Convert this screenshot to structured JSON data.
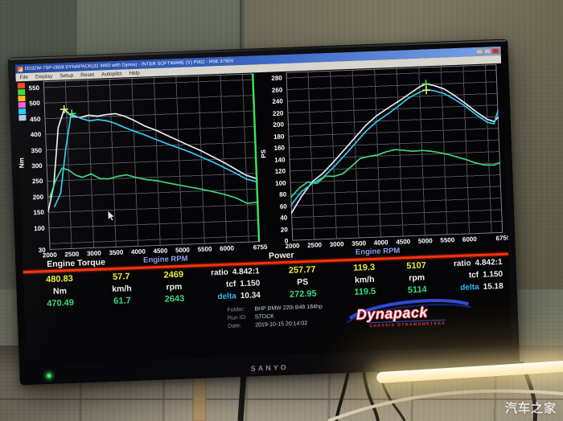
{
  "scene": {
    "watermark": "汽车之家",
    "tv_brand": "SANYO"
  },
  "window": {
    "title": "D032W-7SP-0608 DYNAPACK(32 4WD with Dynos) - INTER SOFTWARE (V) P002 - R5E 3750V",
    "menu": [
      "File",
      "Display",
      "Setup",
      "Reset",
      "Autopilot",
      "Help"
    ]
  },
  "legend_colors": [
    "#ff4013",
    "#2fe22f",
    "#ffb514",
    "#ff57e0",
    "#19cdf2",
    "#a9cdeb"
  ],
  "chart_data": [
    {
      "type": "line",
      "title": "Engine Torque",
      "xlabel": "Engine RPM",
      "ylabel": "Nm",
      "xlim": [
        2000,
        6755
      ],
      "ylim": [
        30,
        570
      ],
      "xticks": [
        2000,
        2500,
        3000,
        3500,
        4000,
        4500,
        5000,
        5500,
        6000,
        6755
      ],
      "xgrid": [
        2000,
        2500,
        3000,
        3500,
        4000,
        4500,
        5000,
        5500,
        6000,
        6500,
        6755
      ],
      "yticks": [
        550,
        500,
        450,
        400,
        350,
        300,
        250,
        200,
        150,
        100,
        30
      ],
      "ygrid": [
        550,
        500,
        450,
        400,
        350,
        300,
        250,
        200,
        150,
        100,
        50
      ],
      "grid": true,
      "series": [
        {
          "name": "run-1-torque",
          "color": "#e9e9f5",
          "x": [
            2000,
            2150,
            2300,
            2450,
            2600,
            2800,
            3000,
            3200,
            3400,
            3600,
            3800,
            4000,
            4250,
            4500,
            4750,
            5000,
            5250,
            5500,
            5750,
            6000,
            6250,
            6500,
            6755
          ],
          "values": [
            152,
            235,
            420,
            478,
            456,
            450,
            456,
            452,
            456,
            458,
            449,
            435,
            415,
            400,
            382,
            364,
            346,
            329,
            309,
            289,
            267,
            245,
            232
          ]
        },
        {
          "name": "run-2-torque",
          "color": "#35c8f0",
          "x": [
            2150,
            2300,
            2450,
            2600,
            2800,
            3000,
            3200,
            3400,
            3600,
            3800,
            4000,
            4250,
            4500,
            4750,
            5000,
            5250,
            5500,
            5750,
            6000,
            6250,
            6500,
            6755
          ],
          "values": [
            168,
            210,
            350,
            462,
            448,
            438,
            441,
            436,
            426,
            412,
            400,
            386,
            370,
            355,
            341,
            326,
            309,
            292,
            273,
            254,
            233,
            222
          ]
        },
        {
          "name": "reference-trace",
          "color": "#3ed47e",
          "x": [
            2050,
            2200,
            2350,
            2500,
            2650,
            2800,
            3000,
            3200,
            3400,
            3600,
            3800,
            4000,
            4250,
            4500,
            4750,
            5000,
            5250,
            5500,
            5750,
            6000,
            6250,
            6500,
            6755
          ],
          "values": [
            198,
            252,
            290,
            283,
            266,
            258,
            268,
            252,
            250,
            257,
            261,
            252,
            243,
            238,
            229,
            221,
            213,
            205,
            196,
            186,
            174,
            155,
            158
          ]
        }
      ],
      "markers": [
        {
          "x": 2450,
          "y": 478,
          "color": "#d8ef5a"
        },
        {
          "x": 2620,
          "y": 463,
          "color": "#49e06b"
        }
      ],
      "cursor_x": 6755,
      "pointer": {
        "x": 3350,
        "y": 148
      }
    },
    {
      "type": "line",
      "title": "Power",
      "xlabel": "Engine RPM",
      "ylabel": "PS",
      "xlim": [
        2000,
        6755
      ],
      "ylim": [
        0,
        290
      ],
      "xticks": [
        2000,
        2500,
        3000,
        3500,
        4000,
        4500,
        5000,
        5500,
        6000,
        6755
      ],
      "xgrid": [
        2000,
        2500,
        3000,
        3500,
        4000,
        4500,
        5000,
        5500,
        6000,
        6500,
        6755
      ],
      "yticks": [
        280,
        260,
        240,
        220,
        200,
        180,
        160,
        140,
        120,
        100,
        80,
        60,
        40,
        20,
        0
      ],
      "ygrid": [
        280,
        260,
        240,
        220,
        200,
        180,
        160,
        140,
        120,
        100,
        80,
        60,
        40,
        20
      ],
      "grid": true,
      "series": [
        {
          "name": "run-1-power",
          "color": "#e9e9f5",
          "x": [
            2000,
            2250,
            2500,
            2750,
            3000,
            3250,
            3500,
            3750,
            4000,
            4250,
            4500,
            4750,
            5000,
            5150,
            5350,
            5550,
            5750,
            6000,
            6250,
            6500,
            6650,
            6755
          ],
          "values": [
            47,
            76,
            100,
            114,
            133,
            153,
            173,
            193,
            209,
            221,
            232,
            244,
            256,
            261,
            257,
            251,
            241,
            226,
            210,
            196,
            192,
            199
          ]
        },
        {
          "name": "run-2-power",
          "color": "#35c8f0",
          "x": [
            2000,
            2250,
            2500,
            2750,
            3000,
            3250,
            3500,
            3750,
            4000,
            4250,
            4500,
            4750,
            5000,
            5150,
            5350,
            5550,
            5750,
            6000,
            6250,
            6500,
            6650,
            6755
          ],
          "values": [
            61,
            84,
            97,
            107,
            124,
            143,
            163,
            183,
            199,
            211,
            224,
            238,
            247,
            251,
            248,
            243,
            234,
            221,
            205,
            191,
            188,
            212
          ]
        },
        {
          "name": "reference-trace",
          "color": "#3ed47e",
          "x": [
            2000,
            2200,
            2400,
            2600,
            2800,
            3000,
            3200,
            3400,
            3600,
            3800,
            4000,
            4200,
            4400,
            4600,
            4800,
            5000,
            5200,
            5400,
            5600,
            5800,
            6000,
            6200,
            6400,
            6600,
            6755
          ],
          "values": [
            74,
            90,
            100,
            97,
            109,
            108,
            112,
            124,
            137,
            140,
            142,
            147,
            150,
            148,
            146,
            147,
            145,
            142,
            138,
            133,
            128,
            122,
            118,
            117,
            121
          ]
        }
      ],
      "markers": [
        {
          "x": 5150,
          "y": 261,
          "color": "#49e06b"
        },
        {
          "x": 5150,
          "y": 250,
          "color": "#d8ef5a"
        }
      ]
    }
  ],
  "readouts": {
    "left": {
      "main": "480.83",
      "main_unit": "Nm",
      "speed": "57.7",
      "speed_unit": "km/h",
      "rpm": "2469",
      "rpm_unit": "rpm",
      "main2": "470.49",
      "speed2": "61.7",
      "rpm2": "2643",
      "ratio_label": "ratio",
      "ratio": "4.842:1",
      "tcf_label": "tcf",
      "tcf": "1.150",
      "delta_label": "delta",
      "delta": "10.34"
    },
    "right": {
      "main": "257.77",
      "main_unit": "PS",
      "speed": "119.3",
      "speed_unit": "km/h",
      "rpm": "5107",
      "rpm_unit": "rpm",
      "main2": "272.95",
      "speed2": "119.5",
      "rpm2": "5114",
      "ratio_label": "ratio",
      "ratio": "4.842:1",
      "tcf_label": "tcf",
      "tcf": "1.150",
      "delta_label": "delta",
      "delta": "15.18"
    }
  },
  "footer": {
    "folder_label": "Folder:",
    "folder": "BHP BMW 220i B48 184hp",
    "run_label": "Run ID:",
    "run": "STOCK",
    "date_label": "Date:",
    "date": "2019-10-15 20:14:02"
  },
  "logo": {
    "name": "Dynapack",
    "tagline": "CHASSIS DYNAMOMETERS"
  }
}
